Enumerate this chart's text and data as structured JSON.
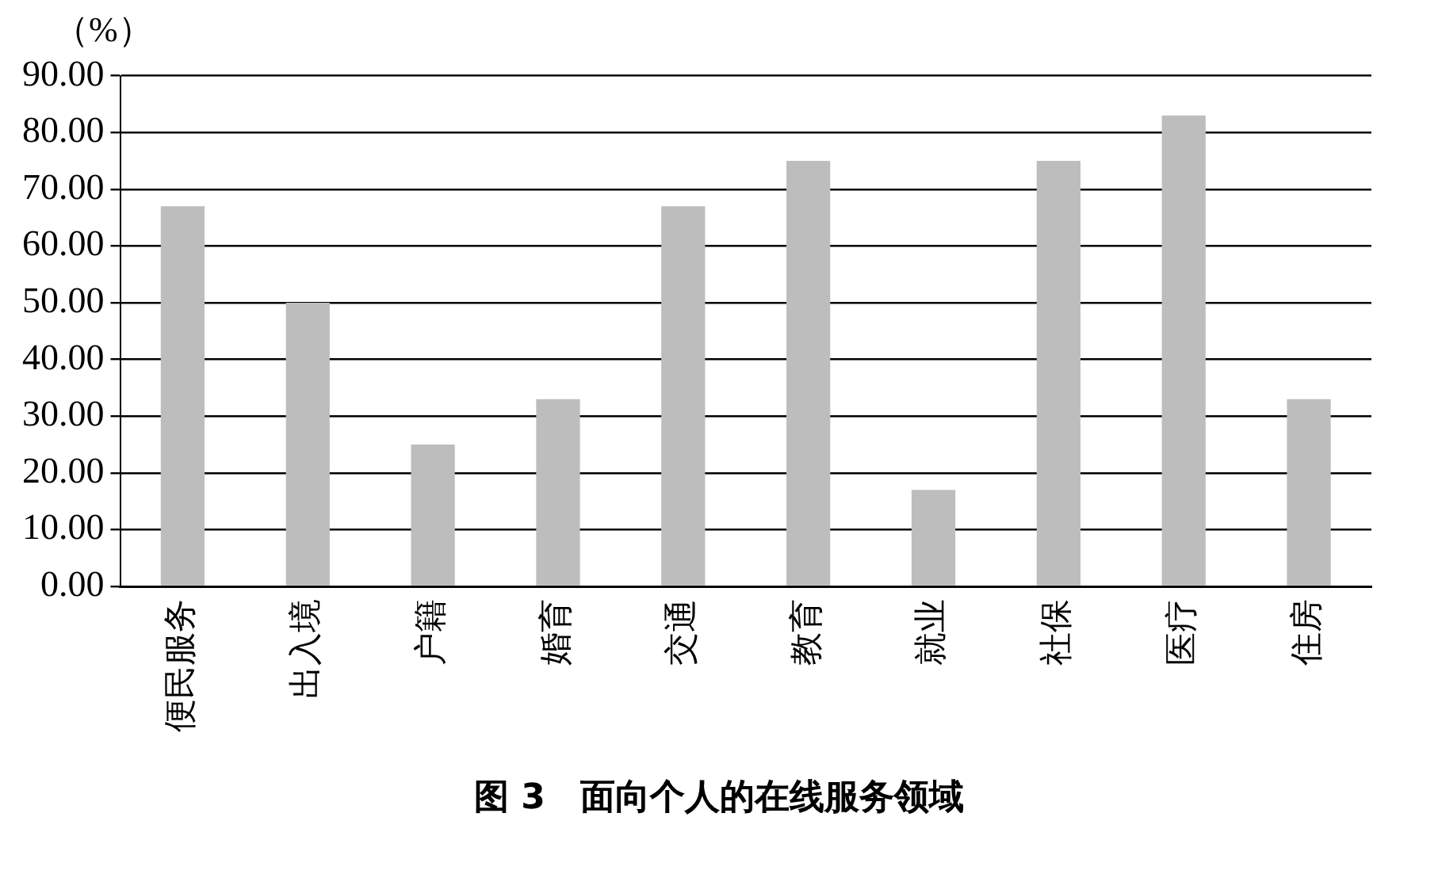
{
  "chart_data": {
    "type": "bar",
    "title": "图 3　面向个人的在线服务领域",
    "ylabel": "（%）",
    "categories": [
      "便民服务",
      "出入境",
      "户籍",
      "婚育",
      "交通",
      "教育",
      "就业",
      "社保",
      "医疗",
      "住房"
    ],
    "values": [
      67,
      50,
      25,
      33,
      67,
      75,
      17,
      75,
      83,
      33
    ],
    "color": "#bdbdbd",
    "ylim": [
      0,
      90
    ],
    "yticks": [
      {
        "value": 0,
        "label": "0.00"
      },
      {
        "value": 10,
        "label": "10.00"
      },
      {
        "value": 20,
        "label": "20.00"
      },
      {
        "value": 30,
        "label": "30.00"
      },
      {
        "value": 40,
        "label": "40.00"
      },
      {
        "value": 50,
        "label": "50.00"
      },
      {
        "value": 60,
        "label": "60.00"
      },
      {
        "value": 70,
        "label": "70.00"
      },
      {
        "value": 80,
        "label": "80.00"
      },
      {
        "value": 90,
        "label": "90.00"
      }
    ],
    "grid": "y",
    "legend": false
  }
}
